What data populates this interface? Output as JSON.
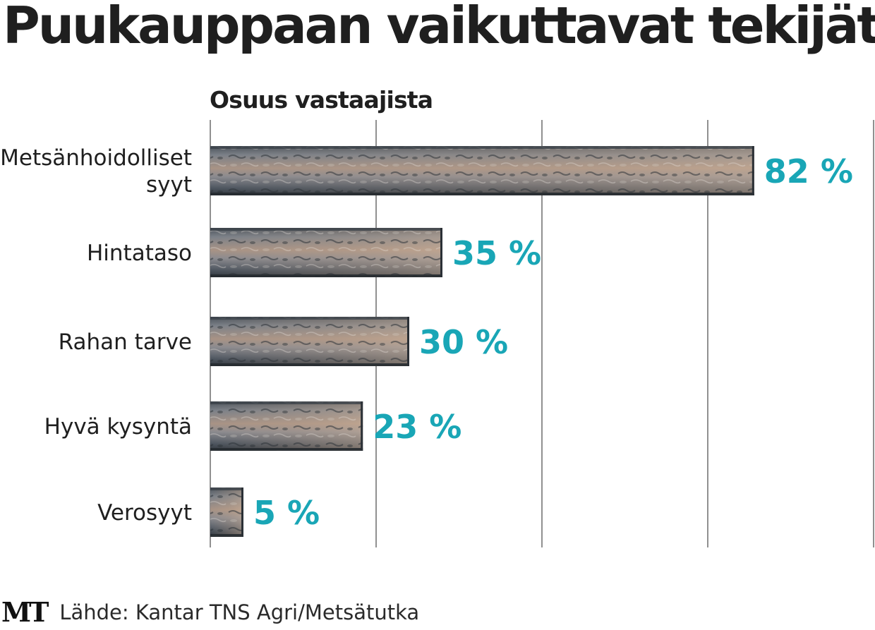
{
  "title": "Puukauppaan vaikuttavat tekijät",
  "subtitle": "Osuus vastaajista",
  "logo": "MT",
  "source": "Lähde: Kantar TNS Agri/Metsätutka",
  "colors": {
    "value_label": "#19a6b6",
    "gridline": "#555555",
    "bar_bark": "#5d6670",
    "bar_wood": "#b49a86"
  },
  "chart_data": {
    "type": "bar",
    "orientation": "horizontal",
    "categories": [
      [
        "Metsänhoidolliset",
        "syyt"
      ],
      [
        "Hintataso"
      ],
      [
        "Rahan tarve"
      ],
      [
        "Hyvä kysyntä"
      ],
      [
        "Verosyyt"
      ]
    ],
    "values": [
      82,
      35,
      30,
      23,
      5
    ],
    "value_labels": [
      "82 %",
      "35 %",
      "30 %",
      "23 %",
      "5 %"
    ],
    "xlim": [
      0,
      100
    ],
    "grid": true,
    "gridlines_at": [
      0,
      25,
      50,
      75,
      100
    ],
    "unit": "%"
  }
}
